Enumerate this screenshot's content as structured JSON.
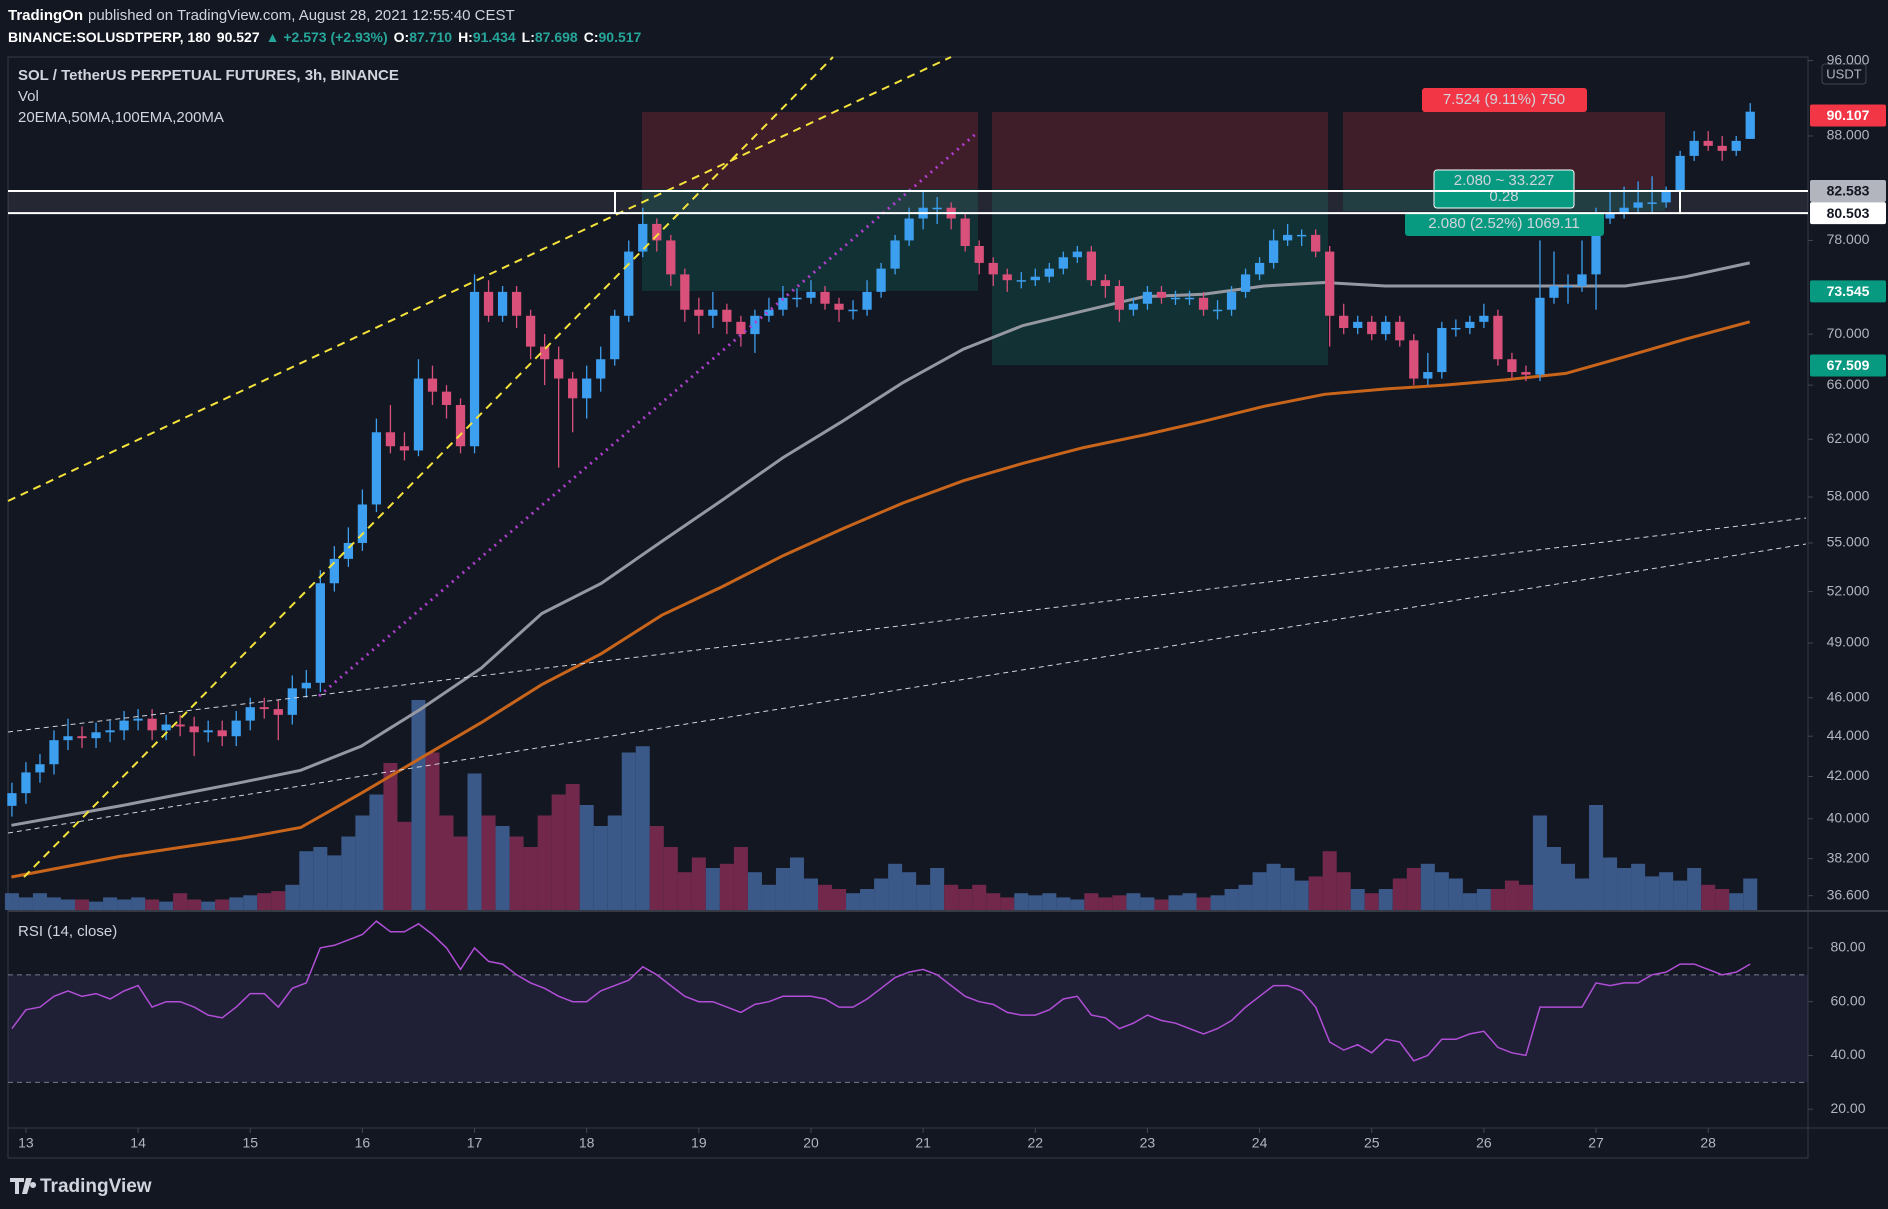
{
  "header": {
    "author": "TradingOn",
    "published": "published on TradingView.com, August 28, 2021 12:55:40 CEST",
    "symbol": "BINANCE:SOLUSDTPERP, 180",
    "price": "90.527",
    "change": "▲ +2.573 (+2.93%)",
    "ohlc": [
      {
        "label": "O:",
        "value": "87.710"
      },
      {
        "label": "H:",
        "value": "91.434"
      },
      {
        "label": "L:",
        "value": "87.698"
      },
      {
        "label": "C:",
        "value": "90.517"
      }
    ]
  },
  "footer": {
    "logo": "TradingView"
  },
  "chart_data": {
    "type": "candlestick",
    "title": "SOL / TetherUS PERPETUAL FUTURES, 3h, BINANCE",
    "unit": "USDT",
    "indicator_name": "20EMA,50MA,100EMA,200MA",
    "log_scale": true,
    "up_color": "#3d9ff0",
    "down_color": "#d9507a",
    "xlim": [
      12.84,
      28.89
    ],
    "xticks": [
      13,
      14,
      15,
      16,
      17,
      18,
      19,
      20,
      21,
      22,
      23,
      24,
      25,
      26,
      27,
      28
    ],
    "ylim": [
      36.0,
      96.4
    ],
    "yticks": [
      {
        "value": 36.6,
        "label": "36.600"
      },
      {
        "value": 38.2,
        "label": "38.200"
      },
      {
        "value": 40,
        "label": "40.000"
      },
      {
        "value": 42,
        "label": "42.000"
      },
      {
        "value": 44,
        "label": "44.000"
      },
      {
        "value": 46,
        "label": "46.000"
      },
      {
        "value": 49,
        "label": "49.000"
      },
      {
        "value": 52,
        "label": "52.000"
      },
      {
        "value": 55,
        "label": "55.000"
      },
      {
        "value": 58,
        "label": "58.000"
      },
      {
        "value": 62,
        "label": "62.000"
      },
      {
        "value": 66,
        "label": "66.000"
      },
      {
        "value": 70,
        "label": "70.000"
      },
      {
        "value": 78,
        "label": "78.000"
      },
      {
        "value": 88,
        "label": "88.000"
      },
      {
        "value": 96,
        "label": "96.000"
      }
    ],
    "x": [
      12.875,
      13,
      13.125,
      13.25,
      13.375,
      13.5,
      13.625,
      13.75,
      13.875,
      14,
      14.125,
      14.25,
      14.375,
      14.5,
      14.625,
      14.75,
      14.875,
      15,
      15.125,
      15.25,
      15.375,
      15.5,
      15.625,
      15.75,
      15.875,
      16,
      16.125,
      16.25,
      16.375,
      16.5,
      16.625,
      16.75,
      16.875,
      17,
      17.125,
      17.25,
      17.375,
      17.5,
      17.625,
      17.75,
      17.875,
      18,
      18.125,
      18.25,
      18.375,
      18.5,
      18.625,
      18.75,
      18.875,
      19,
      19.125,
      19.25,
      19.375,
      19.5,
      19.625,
      19.75,
      19.875,
      20,
      20.125,
      20.25,
      20.375,
      20.5,
      20.625,
      20.75,
      20.875,
      21,
      21.125,
      21.25,
      21.375,
      21.5,
      21.625,
      21.75,
      21.875,
      22,
      22.125,
      22.25,
      22.375,
      22.5,
      22.625,
      22.75,
      22.875,
      23,
      23.125,
      23.25,
      23.375,
      23.5,
      23.625,
      23.75,
      23.875,
      24,
      24.125,
      24.25,
      24.375,
      24.5,
      24.625,
      24.75,
      24.875,
      25,
      25.125,
      25.25,
      25.375,
      25.5,
      25.625,
      25.75,
      25.875,
      26,
      26.125,
      26.25,
      26.375,
      26.5,
      26.625,
      26.75,
      26.875,
      27,
      27.125,
      27.25,
      27.375,
      27.5,
      27.625,
      27.75,
      27.875,
      28,
      28.125,
      28.25,
      28.375
    ],
    "open": [
      40.6,
      41.2,
      42.2,
      42.6,
      43.8,
      44.0,
      43.9,
      44.2,
      44.3,
      44.8,
      44.9,
      44.3,
      44.6,
      44.5,
      44.2,
      44.3,
      44.0,
      44.8,
      45.5,
      45.4,
      45.1,
      46.5,
      46.8,
      52.5,
      54.0,
      55.0,
      57.5,
      62.5,
      61.5,
      61.2,
      66.5,
      65.5,
      64.5,
      61.5,
      73.5,
      71.5,
      73.5,
      71.5,
      69.0,
      68.0,
      66.5,
      65.0,
      66.5,
      68.0,
      71.5,
      77.0,
      79.5,
      78.0,
      75.0,
      72.0,
      71.5,
      72.0,
      71.0,
      70.0,
      71.5,
      72.0,
      73.0,
      73.0,
      73.5,
      72.5,
      72.0,
      72.0,
      73.5,
      75.5,
      78.0,
      80.0,
      81.0,
      81.0,
      80.0,
      77.5,
      76.0,
      75.0,
      74.5,
      74.5,
      74.8,
      75.5,
      76.5,
      77.0,
      74.5,
      74.0,
      72.0,
      72.5,
      73.5,
      73.0,
      73.0,
      73.0,
      72.0,
      72.0,
      73.5,
      75.0,
      76.0,
      78.0,
      78.5,
      78.5,
      77.0,
      71.5,
      70.5,
      71.0,
      70.0,
      71.0,
      69.5,
      66.5,
      67.0,
      70.5,
      70.5,
      71.0,
      71.5,
      68.0,
      67.0,
      66.8,
      73.0,
      74.0,
      74.0,
      75.0,
      80.0,
      80.5,
      81.0,
      81.5,
      81.5,
      82.5,
      86.0,
      87.5,
      87.0,
      86.5,
      87.7
    ],
    "high": [
      41.7,
      42.7,
      43.1,
      44.3,
      44.9,
      44.5,
      44.7,
      44.8,
      45.3,
      45.4,
      45.4,
      45.1,
      45.1,
      45.0,
      44.8,
      44.8,
      45.3,
      46.0,
      46.0,
      45.9,
      47.2,
      47.5,
      53.3,
      54.8,
      56.0,
      58.5,
      63.5,
      64.5,
      62.5,
      68.0,
      67.5,
      66.0,
      65.0,
      75.0,
      74.5,
      74.0,
      74.0,
      72.0,
      70.0,
      69.0,
      67.0,
      67.5,
      69.0,
      72.0,
      78.0,
      81.0,
      80.0,
      78.5,
      75.5,
      73.0,
      73.5,
      72.5,
      71.5,
      72.0,
      73.0,
      74.0,
      73.8,
      74.5,
      74.0,
      73.0,
      72.8,
      74.5,
      76.0,
      78.5,
      81.0,
      82.5,
      82.0,
      81.5,
      80.5,
      78.0,
      76.5,
      75.5,
      75.2,
      75.5,
      76.0,
      77.0,
      77.5,
      77.5,
      75.0,
      74.5,
      73.0,
      74.0,
      74.0,
      73.6,
      73.6,
      73.5,
      72.8,
      74.0,
      75.5,
      76.5,
      79.0,
      79.5,
      79.0,
      79.0,
      77.5,
      72.5,
      71.5,
      71.5,
      71.5,
      71.5,
      70.0,
      68.5,
      71.0,
      71.2,
      71.5,
      72.5,
      72.0,
      68.5,
      67.5,
      78.0,
      77.0,
      75.0,
      78.0,
      81.0,
      82.5,
      83.0,
      83.5,
      84.0,
      83.0,
      86.5,
      88.5,
      88.5,
      88.0,
      88.0,
      91.4
    ],
    "low": [
      40.1,
      40.7,
      41.7,
      42.1,
      43.3,
      43.4,
      43.4,
      43.7,
      43.8,
      44.3,
      43.8,
      43.8,
      44.0,
      43.0,
      43.7,
      43.5,
      43.5,
      44.3,
      44.9,
      43.8,
      44.6,
      46.0,
      46.3,
      52.0,
      53.5,
      54.5,
      57.0,
      61.0,
      60.5,
      60.8,
      64.5,
      63.5,
      61.0,
      61.0,
      71.0,
      71.0,
      70.5,
      68.0,
      66.0,
      60.0,
      62.5,
      63.5,
      65.5,
      67.5,
      71.0,
      76.5,
      77.0,
      74.0,
      71.0,
      70.0,
      70.5,
      70.0,
      69.0,
      68.5,
      71.0,
      71.5,
      72.2,
      72.5,
      72.0,
      71.0,
      71.2,
      71.5,
      73.0,
      75.0,
      77.5,
      79.0,
      79.5,
      79.0,
      77.0,
      75.0,
      74.0,
      73.5,
      73.8,
      74.0,
      74.3,
      75.0,
      76.0,
      74.0,
      73.0,
      71.0,
      71.5,
      72.0,
      72.5,
      72.4,
      72.4,
      71.5,
      71.2,
      71.5,
      73.0,
      74.5,
      75.5,
      77.5,
      77.5,
      76.5,
      69.0,
      70.0,
      70.0,
      69.5,
      69.5,
      69.0,
      66.0,
      66.0,
      66.5,
      69.8,
      70.0,
      70.5,
      67.5,
      66.5,
      66.3,
      66.3,
      72.5,
      72.5,
      73.5,
      72.0,
      79.5,
      80.0,
      80.5,
      80.5,
      81.0,
      82.0,
      85.5,
      86.5,
      85.5,
      86.0,
      87.7
    ],
    "close": [
      41.2,
      42.2,
      42.6,
      43.8,
      44.0,
      43.9,
      44.2,
      44.3,
      44.8,
      44.9,
      44.3,
      44.6,
      44.5,
      44.2,
      44.3,
      44.0,
      44.8,
      45.5,
      45.4,
      45.1,
      46.5,
      46.8,
      52.5,
      54.0,
      55.0,
      57.5,
      62.5,
      61.5,
      61.2,
      66.5,
      65.5,
      64.5,
      61.5,
      73.5,
      71.5,
      73.5,
      71.5,
      69.0,
      68.0,
      66.5,
      65.0,
      66.5,
      68.0,
      71.5,
      77.0,
      79.5,
      78.0,
      75.0,
      72.0,
      71.5,
      72.0,
      71.0,
      70.0,
      71.5,
      72.0,
      73.0,
      73.0,
      73.5,
      72.5,
      72.0,
      72.0,
      73.5,
      75.5,
      78.0,
      80.0,
      81.0,
      81.0,
      80.0,
      77.5,
      76.0,
      75.0,
      74.5,
      74.5,
      74.8,
      75.5,
      76.5,
      77.0,
      74.5,
      74.0,
      72.0,
      72.5,
      73.5,
      73.0,
      73.0,
      73.0,
      72.0,
      72.0,
      73.5,
      75.0,
      76.0,
      78.0,
      78.5,
      78.5,
      77.0,
      71.5,
      70.5,
      71.0,
      70.0,
      71.0,
      69.5,
      66.5,
      67.0,
      70.5,
      70.5,
      71.0,
      71.5,
      68.0,
      67.0,
      66.8,
      73.0,
      74.0,
      74.0,
      75.0,
      80.0,
      80.5,
      81.0,
      81.5,
      81.5,
      82.5,
      86.0,
      87.5,
      87.0,
      86.5,
      87.5,
      90.5
    ],
    "volume": {
      "name": "Vol",
      "up_color": "#3f5f93",
      "down_color": "#7c2a50",
      "values": [
        8,
        6,
        8,
        6,
        5,
        5,
        4,
        6,
        5,
        6,
        5,
        4,
        8,
        5,
        4,
        5,
        6,
        7,
        8,
        9,
        12,
        28,
        30,
        26,
        35,
        45,
        55,
        70,
        42,
        100,
        75,
        45,
        35,
        65,
        45,
        40,
        35,
        30,
        45,
        55,
        60,
        50,
        40,
        45,
        75,
        78,
        40,
        30,
        18,
        25,
        20,
        22,
        30,
        18,
        12,
        20,
        25,
        15,
        12,
        10,
        8,
        10,
        15,
        22,
        18,
        12,
        20,
        12,
        10,
        12,
        8,
        6,
        8,
        7,
        8,
        6,
        5,
        8,
        6,
        7,
        8,
        6,
        5,
        7,
        8,
        6,
        7,
        10,
        12,
        18,
        22,
        20,
        14,
        16,
        28,
        18,
        10,
        8,
        10,
        15,
        20,
        22,
        18,
        15,
        8,
        10,
        10,
        14,
        12,
        45,
        30,
        22,
        15,
        50,
        25,
        20,
        22,
        16,
        18,
        14,
        20,
        12,
        10,
        8,
        15
      ]
    },
    "ma_lines": [
      {
        "color": "#9598a1",
        "x": [
          12.87,
          13.84,
          14.91,
          15.45,
          15.99,
          16.52,
          17.06,
          17.6,
          18.13,
          18.67,
          19.21,
          19.75,
          20.28,
          20.82,
          21.36,
          21.89,
          22.43,
          22.97,
          23.5,
          24.04,
          24.58,
          25.12,
          25.65,
          26.19,
          26.73,
          27.26,
          27.8,
          28.37
        ],
        "values": [
          39.7,
          40.6,
          41.7,
          42.3,
          43.5,
          45.4,
          47.6,
          50.7,
          52.5,
          55.1,
          57.8,
          60.7,
          63.3,
          66.2,
          68.8,
          70.7,
          71.9,
          73.1,
          73.3,
          74.0,
          74.3,
          74.0,
          74.0,
          74.0,
          74.0,
          74.0,
          74.8,
          76.0
        ]
      },
      {
        "color": "#c8651b",
        "x": [
          12.87,
          13.84,
          14.91,
          15.45,
          15.99,
          16.52,
          17.06,
          17.6,
          18.13,
          18.67,
          19.21,
          19.75,
          20.28,
          20.82,
          21.36,
          21.89,
          22.43,
          22.97,
          23.5,
          24.04,
          24.58,
          25.12,
          25.65,
          26.19,
          26.73,
          27.26,
          27.8,
          28.37
        ],
        "values": [
          37.4,
          38.3,
          39.1,
          39.6,
          41.2,
          42.9,
          44.7,
          46.7,
          48.4,
          50.6,
          52.3,
          54.2,
          55.9,
          57.6,
          59.1,
          60.3,
          61.4,
          62.3,
          63.3,
          64.4,
          65.3,
          65.7,
          66.0,
          66.4,
          66.9,
          68.2,
          69.6,
          71.0
        ]
      }
    ],
    "price_labels": [
      {
        "value": 90.107,
        "color": "#f23645",
        "text_color": "#ffffff"
      },
      {
        "value": 82.583,
        "color": "#b2b5be",
        "text_color": "#131722"
      },
      {
        "value": 80.503,
        "color": "#ffffff",
        "text_color": "#131722"
      },
      {
        "value": 73.545,
        "color": "#089981",
        "text_color": "#ffffff"
      },
      {
        "value": 67.509,
        "color": "#089981",
        "text_color": "#ffffff"
      }
    ],
    "annotations": [
      "7.524 (9.11%) 750",
      "2.080 ~ 33.227",
      "0.28",
      "2.080 (2.52%) 1069.11"
    ],
    "rsi": {
      "name": "RSI (14, close)",
      "color": "#b04fd6",
      "ylim": [
        13,
        93
      ],
      "bands": [
        30,
        70
      ],
      "yticks": [
        {
          "value": 20,
          "label": "20.00"
        },
        {
          "value": 40,
          "label": "40.00"
        },
        {
          "value": 60,
          "label": "60.00"
        },
        {
          "value": 80,
          "label": "80.00"
        }
      ],
      "values": [
        50,
        57,
        58,
        62,
        64,
        62,
        63,
        61,
        64,
        66,
        58,
        60,
        60,
        58,
        55,
        54,
        58,
        63,
        63,
        58,
        65,
        67,
        80,
        81,
        83,
        85,
        90,
        86,
        86,
        89,
        85,
        80,
        72,
        80,
        75,
        74,
        70,
        67,
        65,
        62,
        60,
        60,
        64,
        66,
        68,
        73,
        70,
        66,
        62,
        60,
        60,
        58,
        56,
        59,
        60,
        62,
        62,
        62,
        61,
        58,
        58,
        61,
        65,
        69,
        71,
        72,
        70,
        66,
        62,
        60,
        59,
        56,
        55,
        55,
        57,
        61,
        62,
        55,
        54,
        50,
        52,
        55,
        53,
        52,
        50,
        48,
        50,
        53,
        58,
        62,
        66,
        66,
        64,
        58,
        45,
        42,
        44,
        41,
        46,
        45,
        38,
        40,
        46,
        46,
        48,
        49,
        43,
        41,
        40,
        58,
        58,
        58,
        58,
        67,
        66,
        67,
        67,
        70,
        71,
        74,
        74,
        72,
        70,
        71,
        74
      ]
    }
  }
}
